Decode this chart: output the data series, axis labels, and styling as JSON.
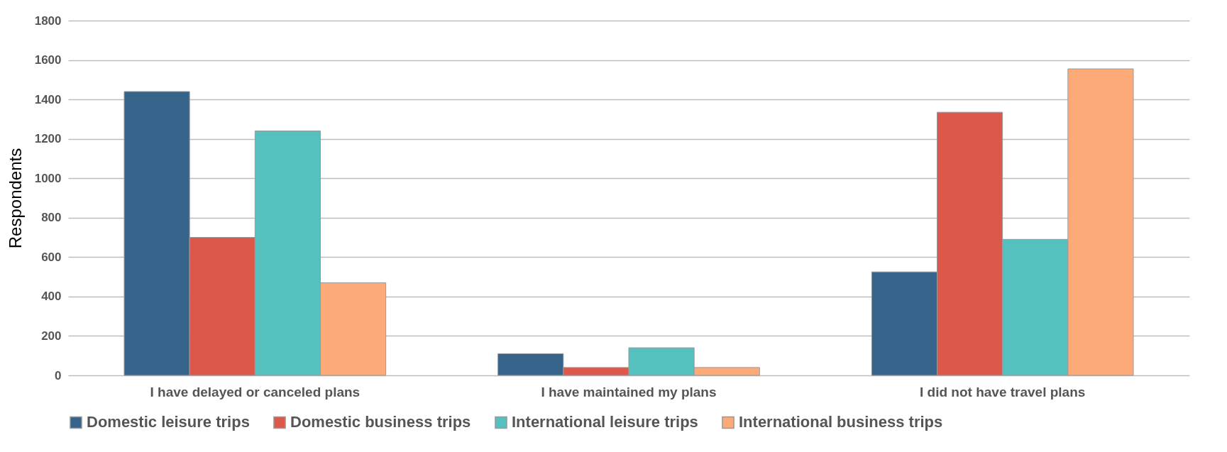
{
  "chart_data": {
    "type": "bar",
    "ylabel": "Respondents",
    "categories": [
      "I have delayed or canceled plans",
      "I have maintained my plans",
      "I did not have travel plans"
    ],
    "series": [
      {
        "name": "Domestic leisure trips",
        "color": "#36638a",
        "values": [
          1440,
          110,
          525
        ]
      },
      {
        "name": "Domestic business trips",
        "color": "#de574b",
        "values": [
          700,
          40,
          1335
        ]
      },
      {
        "name": "International leisure trips",
        "color": "#56c0be",
        "values": [
          1240,
          140,
          690
        ]
      },
      {
        "name": "International business trips",
        "color": "#fdaa79",
        "values": [
          470,
          40,
          1555
        ]
      }
    ],
    "ylim": [
      0,
      1800
    ],
    "yticks": [
      0,
      200,
      400,
      600,
      800,
      1000,
      1200,
      1400,
      1600,
      1800
    ],
    "grid": "y",
    "legend": "bottom"
  }
}
